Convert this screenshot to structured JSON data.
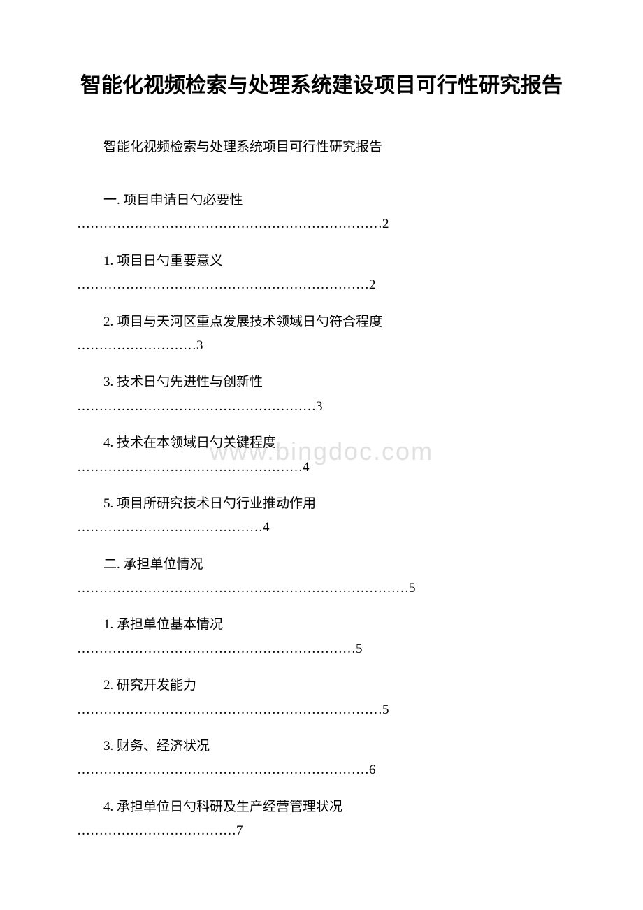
{
  "document": {
    "title": "智能化视频检索与处理系统建设项目可行性研究报告",
    "subtitle": "智能化视频检索与处理系统项目可行性研究报告",
    "watermark": "www.bingdoc.com",
    "background_color": "#ffffff",
    "text_color": "#000000",
    "watermark_color": "#e0e0e0",
    "title_fontsize": 30,
    "body_fontsize": 19,
    "toc": [
      {
        "label": "一. 项目申请日勺必要性",
        "dots": "……………………………………………………………2"
      },
      {
        "label": "1. 项目日勺重要意义",
        "dots": "…………………………………………………………2"
      },
      {
        "label": "2. 项目与天河区重点发展技术领域日勺符合程度",
        "dots": "………………………3"
      },
      {
        "label": "3. 技术日勺先进性与创新性",
        "dots": "………………………………………………3"
      },
      {
        "label": "4. 技术在本领域日勺关键程度",
        "dots": "……………………………………………4"
      },
      {
        "label": "5. 项目所研究技术日勺行业推动作用",
        "dots": "……………………………………4"
      },
      {
        "label": "二. 承担单位情况",
        "dots": "…………………………………………………………………5"
      },
      {
        "label": "1. 承担单位基本情况",
        "dots": "………………………………………………………5"
      },
      {
        "label": "2. 研究开发能力",
        "dots": "……………………………………………………………5"
      },
      {
        "label": "3. 财务、经济状况",
        "dots": "…………………………………………………………6"
      },
      {
        "label": "4. 承担单位日勺科研及生产经营管理状况",
        "dots": "………………………………7"
      }
    ]
  }
}
